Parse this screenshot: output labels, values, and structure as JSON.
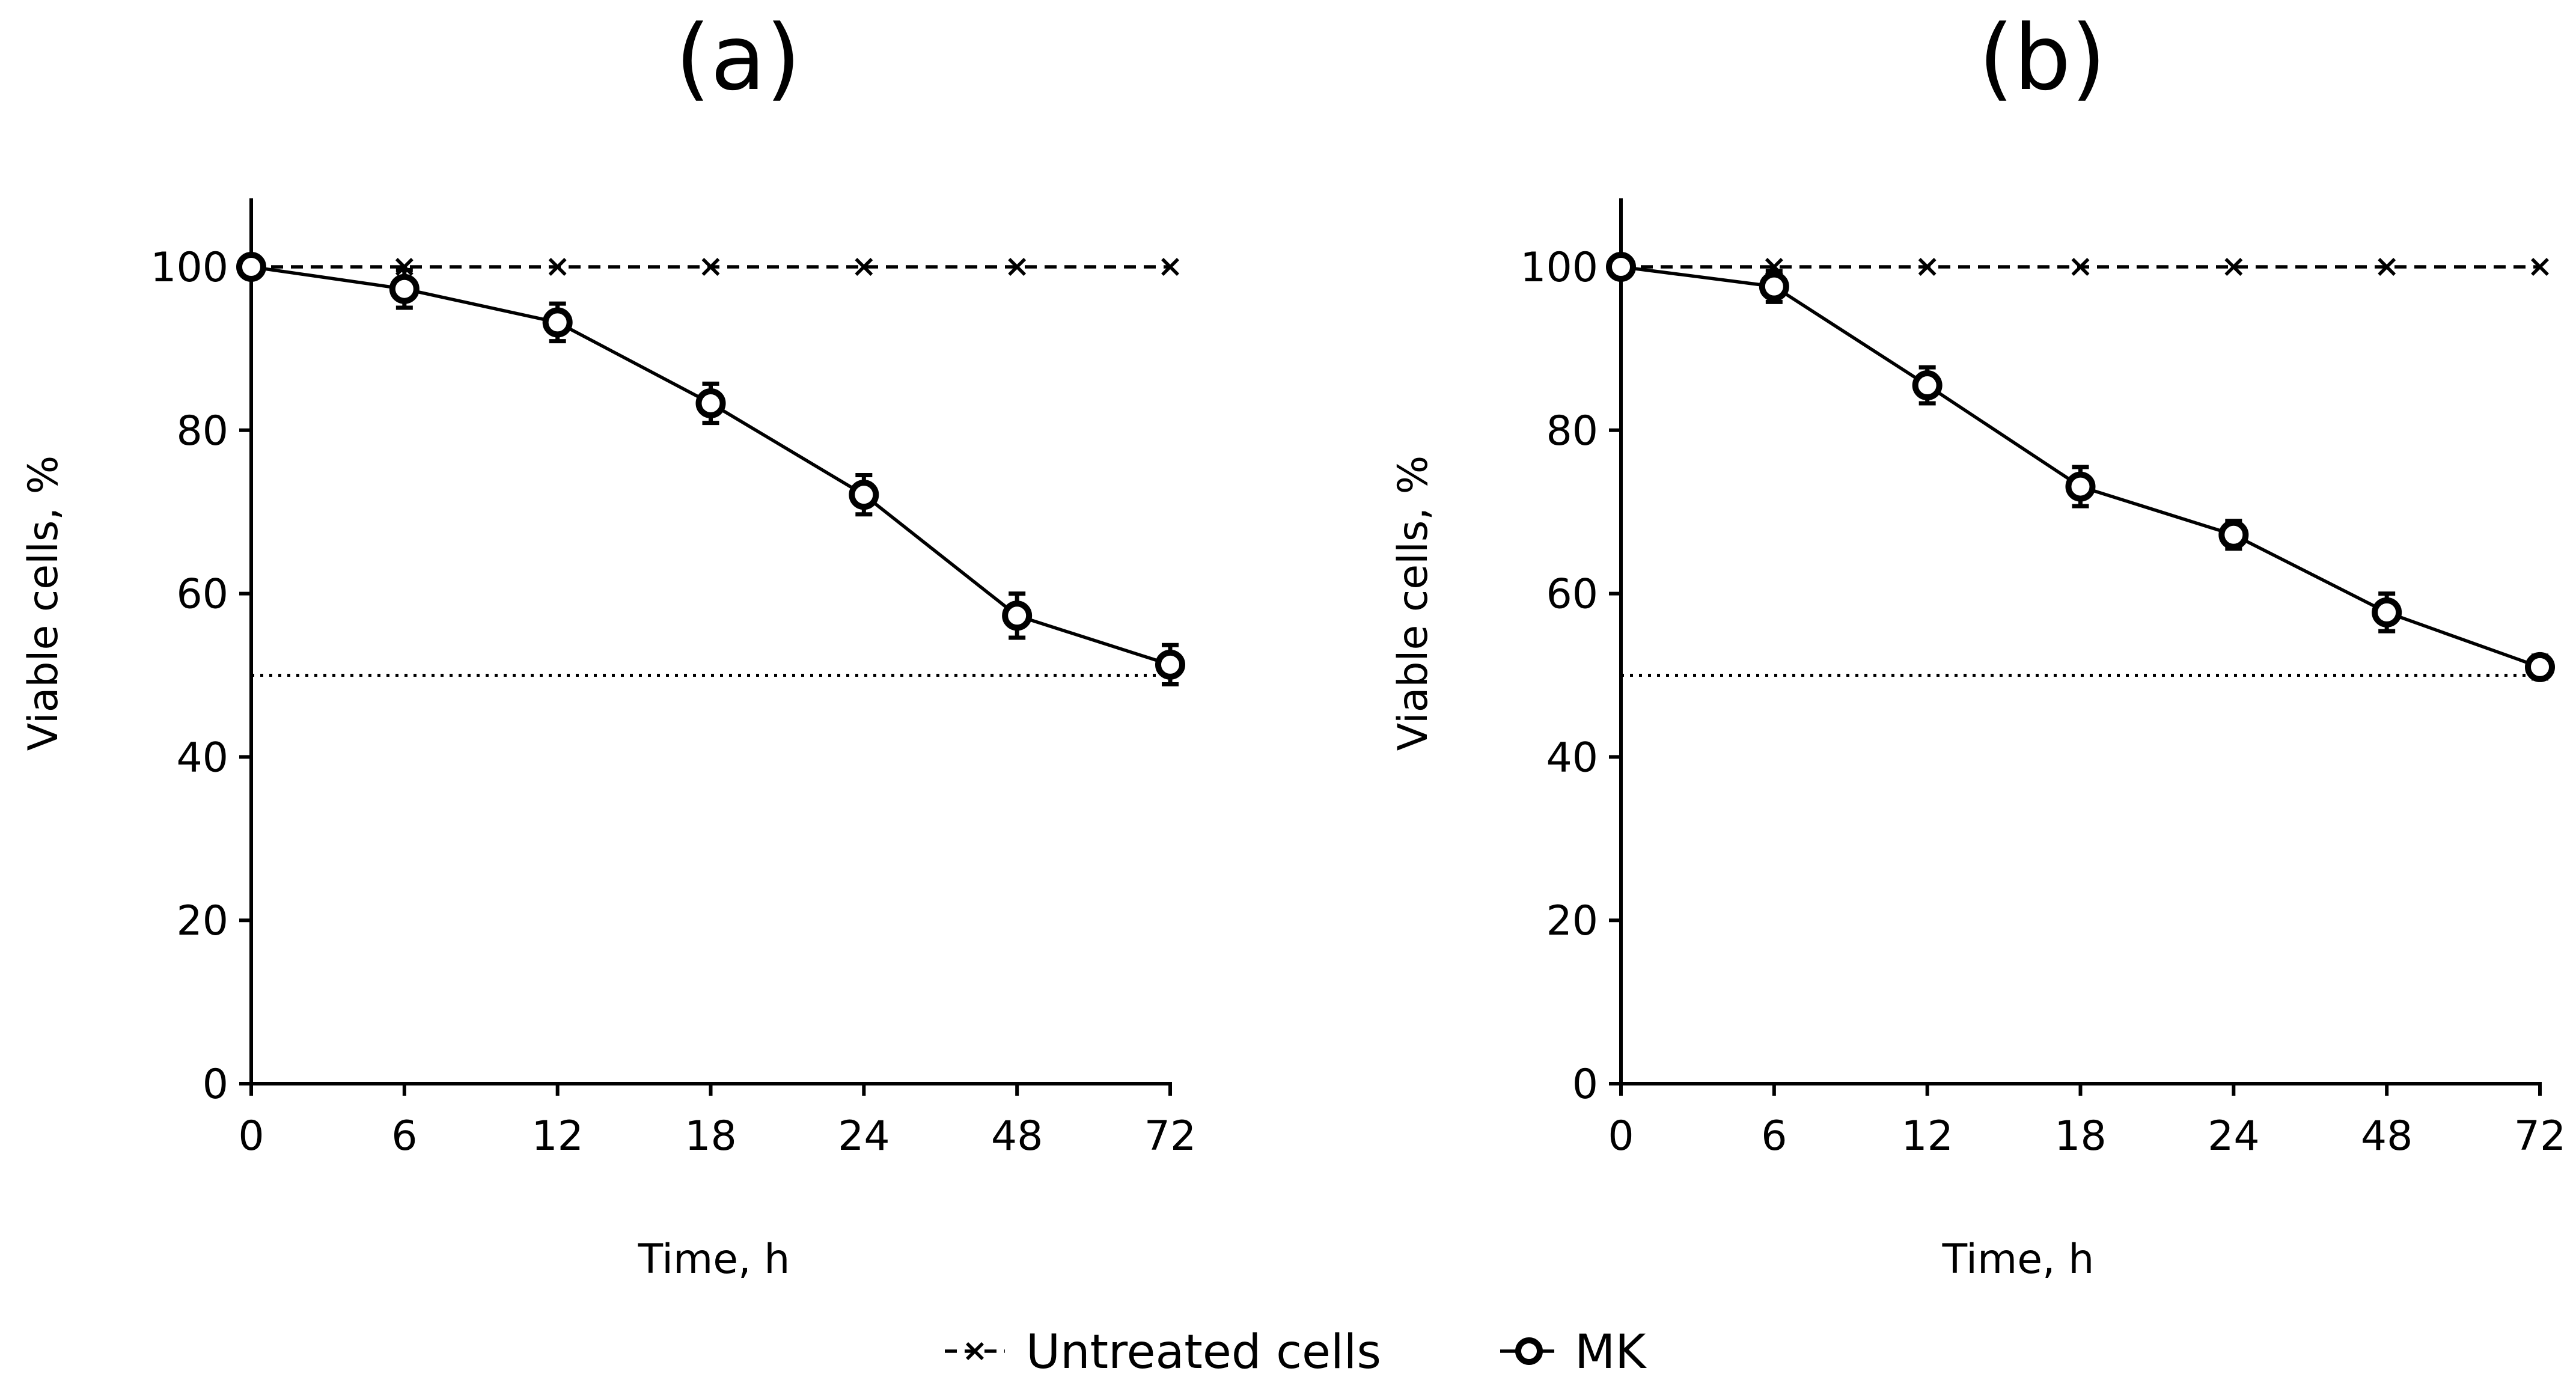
{
  "chart_data": [
    {
      "type": "line",
      "title": "(a)",
      "xlabel": "Time, h",
      "ylabel": "Viable cells, %",
      "categories": [
        "0",
        "6",
        "12",
        "18",
        "24",
        "48",
        "72"
      ],
      "yticks": [
        "0",
        "20",
        "40",
        "60",
        "80",
        "100"
      ],
      "ylim": [
        0,
        110
      ],
      "reference_line": 50,
      "series": [
        {
          "name": "Untreated cells",
          "marker": "x",
          "style": "dashed",
          "values": [
            100,
            100,
            100,
            100,
            100,
            100,
            100
          ]
        },
        {
          "name": "MK",
          "marker": "o",
          "style": "solid",
          "values": [
            100,
            97.3,
            93.2,
            83.3,
            72.1,
            57.3,
            51.3
          ],
          "errors": [
            0,
            2.3,
            2.3,
            2.4,
            2.4,
            2.7,
            2.4
          ]
        }
      ]
    },
    {
      "type": "line",
      "title": "(b)",
      "xlabel": "Time, h",
      "ylabel": "Viable cells, %",
      "categories": [
        "0",
        "6",
        "12",
        "18",
        "24",
        "48",
        "72"
      ],
      "yticks": [
        "0",
        "20",
        "40",
        "60",
        "80",
        "100"
      ],
      "ylim": [
        0,
        110
      ],
      "reference_line": 50,
      "series": [
        {
          "name": "Untreated cells",
          "marker": "x",
          "style": "dashed",
          "values": [
            100,
            100,
            100,
            100,
            100,
            100,
            100
          ]
        },
        {
          "name": "MK",
          "marker": "o",
          "style": "solid",
          "values": [
            100,
            97.6,
            85.5,
            73.1,
            67.2,
            57.7,
            51.0
          ],
          "errors": [
            0,
            1.9,
            2.2,
            2.4,
            1.7,
            2.3,
            1.4
          ]
        }
      ]
    }
  ],
  "legend": {
    "position": "bottom-center",
    "items": [
      {
        "label": "Untreated cells",
        "marker": "x",
        "style": "dashed"
      },
      {
        "label": "MK",
        "marker": "o",
        "style": "solid"
      }
    ]
  }
}
